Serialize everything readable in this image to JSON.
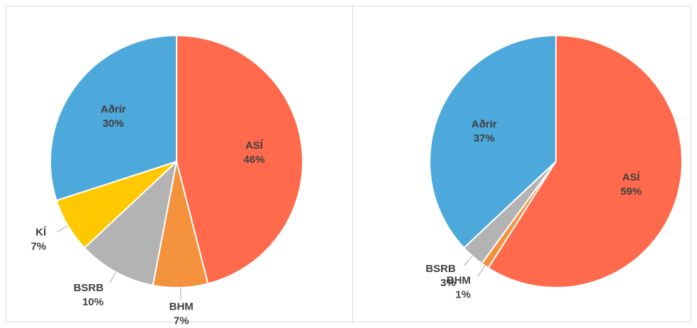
{
  "chart_data": [
    {
      "type": "pie",
      "categories": [
        "ASÍ",
        "BHM",
        "BSRB",
        "KÍ",
        "Aðrir"
      ],
      "values": [
        46,
        7,
        10,
        7,
        30
      ],
      "value_labels": [
        "46%",
        "7%",
        "10%",
        "7%",
        "30%"
      ],
      "colors": [
        "#ff6a4d",
        "#f4913d",
        "#b3b3b3",
        "#ffc800",
        "#4da8db"
      ]
    },
    {
      "type": "pie",
      "categories": [
        "ASÍ",
        "BHM",
        "BSRB",
        "Aðrir"
      ],
      "values": [
        59,
        1,
        3,
        37
      ],
      "value_labels": [
        "59%",
        "1%",
        "3%",
        "37%"
      ],
      "colors": [
        "#ff6a4d",
        "#f4913d",
        "#b3b3b3",
        "#4da8db"
      ]
    }
  ]
}
